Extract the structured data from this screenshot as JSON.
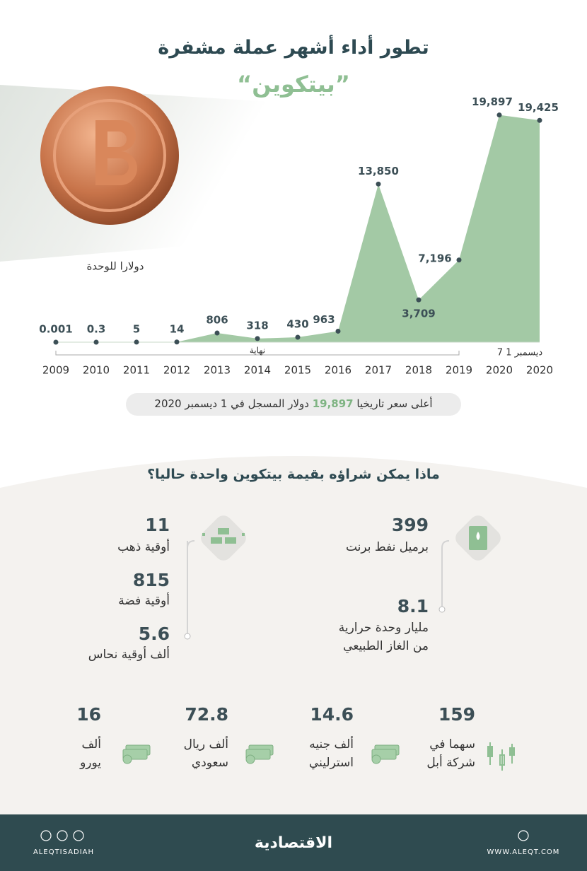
{
  "header": {
    "title": "تطور أداء أشهر عملة مشفرة",
    "subtitle": "”بيتكوين“"
  },
  "chart_data": {
    "type": "area",
    "unit_label": "دولارا للوحدة",
    "categories": [
      "2009",
      "2010",
      "2011",
      "2012",
      "2013",
      "2014",
      "2015",
      "2016",
      "2017",
      "2018",
      "2019",
      "2020",
      "2020"
    ],
    "values": [
      0.001,
      0.3,
      5,
      14,
      806,
      318,
      430,
      963,
      13850,
      3709,
      7196,
      19897,
      19425
    ],
    "value_labels": [
      "0.001",
      "0.3",
      "5",
      "14",
      "806",
      "318",
      "430",
      "963",
      "13,850",
      "3,709",
      "7,196",
      "19,897",
      "19,425"
    ],
    "color": "#a3c9a5",
    "ylim": [
      0,
      20000
    ],
    "annotations": {
      "end_of_year": "نهاية",
      "december": "7 ديسمبر 1"
    }
  },
  "highlight": {
    "before": "أعلى سعر تاريخيا",
    "value": "19,897",
    "after": "دولار المسجل في 1 ديسمبر 2020"
  },
  "purchases": {
    "title": "ماذا يمكن شراؤه بقيمة بيتكوين واحدة حاليا؟",
    "items": [
      {
        "value": 399,
        "label_lines": [
          "برميل نفط برنت"
        ]
      },
      {
        "value": 8.1,
        "label_lines": [
          "مليار وحدة حرارية",
          "من الغاز الطبيعي"
        ]
      },
      {
        "value": 11,
        "label_lines": [
          "أوقية ذهب"
        ]
      },
      {
        "value": 815,
        "label_lines": [
          "أوقية فضة"
        ]
      },
      {
        "value": 5.6,
        "label_lines": [
          "ألف أوقية نحاس"
        ]
      },
      {
        "value": 159,
        "label_lines": [
          "سهما في",
          "شركة أبل"
        ]
      },
      {
        "value": 14.6,
        "label_lines": [
          "ألف جنيه",
          "استرليني"
        ]
      },
      {
        "value": 72.8,
        "label_lines": [
          "ألف ريال",
          "سعودي"
        ]
      },
      {
        "value": 16,
        "label_lines": [
          "ألف",
          "يورو"
        ]
      }
    ]
  },
  "footer": {
    "logo": "الاقتصادية",
    "handle": "ALEQTISADIAH",
    "website": "WWW.ALEQT.COM"
  }
}
